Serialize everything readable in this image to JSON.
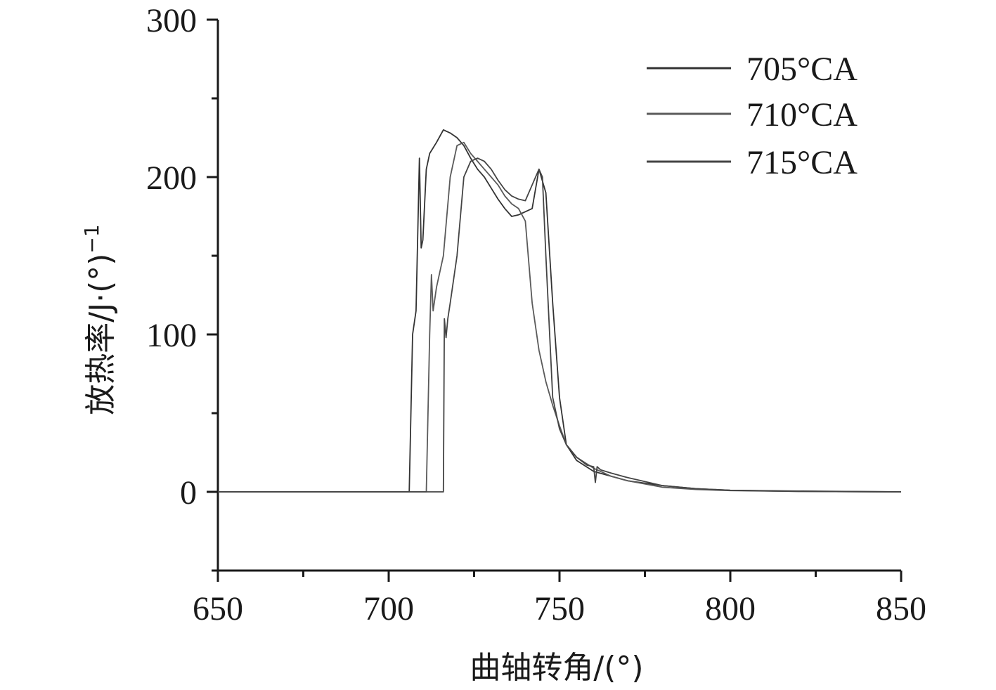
{
  "chart_data": {
    "type": "line",
    "xlabel": "曲轴转角/(°)",
    "ylabel": "放热率/J·(°)",
    "ylabel_superscript": "−1",
    "xlim": [
      650,
      850
    ],
    "ylim": [
      -50,
      300
    ],
    "x_ticks": [
      "650",
      "700",
      "750",
      "800",
      "850"
    ],
    "y_ticks": [
      "0",
      "100",
      "200",
      "300"
    ],
    "y_tick_values": [
      0,
      100,
      200,
      300
    ],
    "x_tick_values": [
      650,
      700,
      750,
      800,
      850
    ],
    "grid": false,
    "legend_position": "top-right",
    "series": [
      {
        "name": "705°CA",
        "color": "#333333",
        "x": [
          650,
          706,
          707,
          708,
          709,
          709.5,
          710,
          711,
          712,
          714,
          716,
          718,
          720,
          722,
          724,
          726,
          728,
          730,
          732,
          734,
          736,
          738,
          740,
          742,
          744,
          746,
          748,
          750,
          752,
          755,
          760,
          765,
          770,
          780,
          790,
          800,
          820,
          840,
          850
        ],
        "y": [
          0,
          0,
          100,
          115,
          212,
          155,
          160,
          205,
          215,
          222,
          230,
          228,
          225,
          220,
          212,
          205,
          200,
          193,
          186,
          180,
          175,
          176,
          178,
          180,
          205,
          190,
          120,
          60,
          30,
          20,
          13,
          10,
          7,
          4,
          2,
          1,
          0.5,
          0.2,
          0
        ]
      },
      {
        "name": "710°CA",
        "color": "#5a5a5a",
        "x": [
          650,
          711,
          712,
          712.5,
          713,
          714,
          716,
          718,
          720,
          722,
          724,
          726,
          728,
          730,
          732,
          734,
          736,
          738,
          740,
          742,
          744,
          746,
          748,
          750,
          752,
          755,
          760,
          765,
          770,
          780,
          790,
          800,
          820,
          840,
          850
        ],
        "y": [
          0,
          0,
          100,
          138,
          115,
          130,
          150,
          200,
          220,
          222,
          215,
          210,
          205,
          200,
          195,
          188,
          183,
          180,
          172,
          120,
          90,
          70,
          55,
          42,
          30,
          22,
          15,
          10,
          7,
          3,
          1.5,
          0.8,
          0.3,
          0.1,
          0
        ]
      },
      {
        "name": "715°CA",
        "color": "#444444",
        "x": [
          650,
          716,
          716.3,
          716.8,
          717.3,
          718,
          720,
          722,
          724,
          726,
          728,
          730,
          732,
          734,
          736,
          738,
          740,
          742,
          744,
          745,
          746,
          748,
          750,
          752,
          755,
          758,
          760,
          760.5,
          761,
          762,
          765,
          770,
          780,
          790,
          800,
          820,
          840,
          850
        ],
        "y": [
          0,
          0,
          110,
          98,
          110,
          120,
          150,
          200,
          210,
          212,
          210,
          205,
          198,
          192,
          188,
          186,
          185,
          195,
          205,
          200,
          150,
          60,
          40,
          30,
          22,
          17,
          16,
          6,
          16,
          14,
          12,
          9,
          4,
          2,
          1,
          0.3,
          0.1,
          0
        ]
      }
    ]
  }
}
